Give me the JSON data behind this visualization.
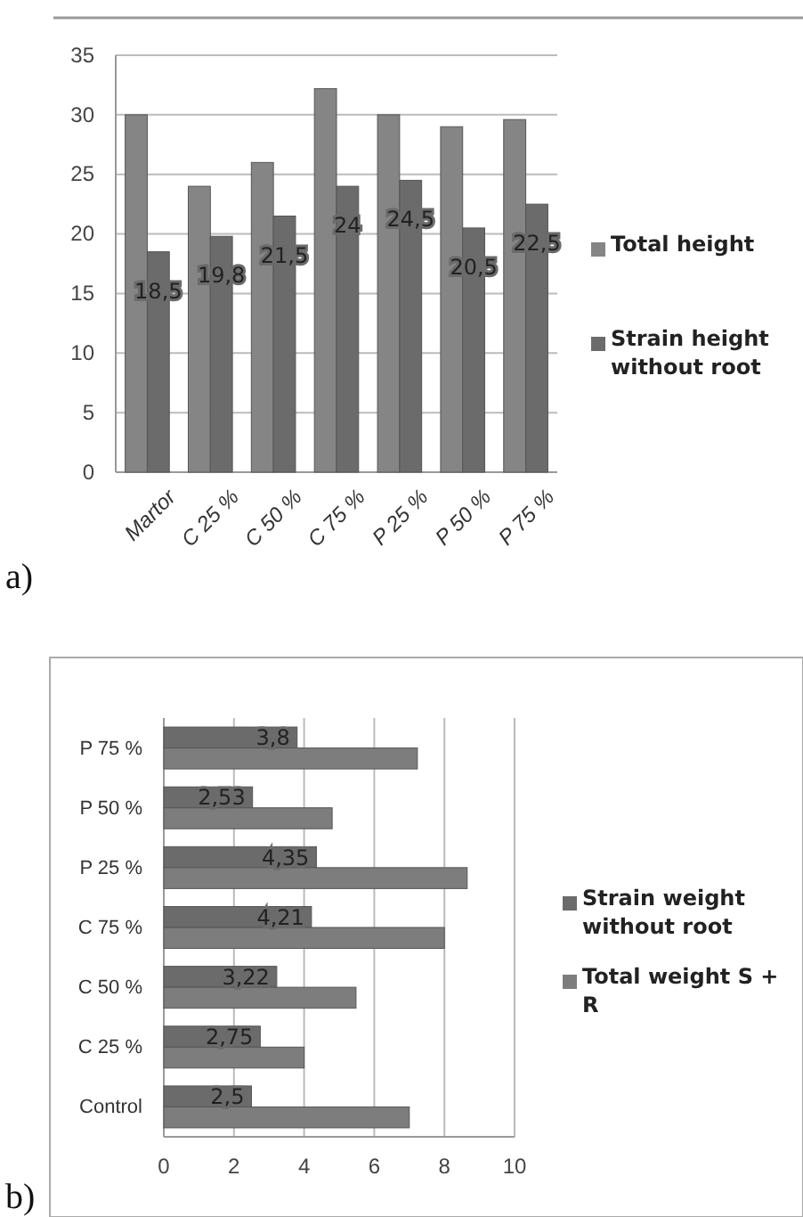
{
  "chart_data": [
    {
      "type": "bar",
      "categories": [
        "Martor",
        "C 25 %",
        "C 50 %",
        "C 75 %",
        "P 25 %",
        "P 50 %",
        "P 75 %"
      ],
      "series": [
        {
          "name": "Total height",
          "color": "#858585",
          "values": [
            30,
            24,
            26,
            32.2,
            30,
            29,
            29.6
          ]
        },
        {
          "name": "Strain height without root",
          "color": "#6b6b6b",
          "values": [
            18.5,
            19.8,
            21.5,
            24,
            24.5,
            20.5,
            22.5
          ],
          "value_labels": [
            "18,5",
            "19,8",
            "21,5",
            "24",
            "24,5",
            "20,5",
            "22,5"
          ]
        }
      ],
      "ylim": [
        0,
        35
      ],
      "yticks": [
        0,
        5,
        10,
        15,
        20,
        25,
        30,
        35
      ],
      "grid": "y",
      "legend": "right",
      "annotations": [
        "a)"
      ]
    },
    {
      "type": "bar",
      "orientation": "horizontal",
      "categories": [
        "P 75 %",
        "P 50 %",
        "P 25 %",
        "C 75 %",
        "C 50 %",
        "C 25 %",
        "Control"
      ],
      "series": [
        {
          "name": "Strain weight without root",
          "color": "#6b6b6b",
          "values": [
            3.8,
            2.53,
            4.35,
            4.21,
            3.22,
            2.75,
            2.5
          ],
          "value_labels": [
            "3,8",
            "2,53",
            "4,35",
            "4,21",
            "3,22",
            "2,75",
            "2,5"
          ]
        },
        {
          "name": "Total weight S + R",
          "color": "#7d7d7d",
          "values": [
            7.23,
            4.8,
            8.65,
            8.0,
            5.48,
            4.0,
            7.0
          ]
        }
      ],
      "xlim": [
        0,
        10
      ],
      "xticks": [
        0,
        2,
        4,
        6,
        8,
        10
      ],
      "grid": "x",
      "legend": "right",
      "annotations": [
        "b)"
      ]
    }
  ]
}
